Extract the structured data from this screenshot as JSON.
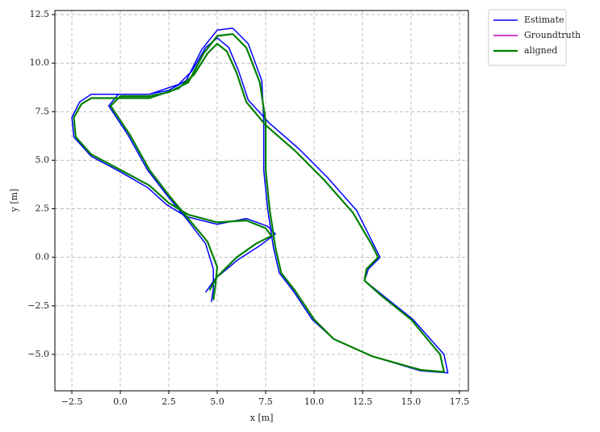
{
  "chart_data": {
    "type": "line",
    "xlabel": "x [m]",
    "ylabel": "y [m]",
    "xlim": [
      -3.375,
      17.96
    ],
    "ylim": [
      -6.875,
      12.71
    ],
    "xticks": [
      {
        "value": -2.5,
        "label": "−2.5"
      },
      {
        "value": 0,
        "label": "0.0"
      },
      2.5,
      {
        "value": 5,
        "label": "5.0"
      },
      7.5,
      {
        "value": 10,
        "label": "10.0"
      },
      12.5,
      {
        "value": 15,
        "label": "15.0"
      },
      17.5
    ],
    "yticks": [
      {
        "value": -5,
        "label": "−5.0"
      },
      {
        "value": -2.5,
        "label": "−2.5"
      },
      {
        "value": 0,
        "label": "0.0"
      },
      2.5,
      {
        "value": 5,
        "label": "5.0"
      },
      7.5,
      {
        "value": 10,
        "label": "10.0"
      },
      12.5
    ],
    "grid": true,
    "legend": "outside-upper-right",
    "series": [
      {
        "name": "Estimate",
        "color": "#0000ff",
        "width": 1.5,
        "x": [
          4.4,
          4.9,
          6.1,
          7.2,
          8.0,
          7.6,
          6.5,
          5.0,
          3.4,
          2.4,
          1.4,
          0,
          -1.5,
          -2.4,
          -2.5,
          -2.1,
          -1.5,
          0,
          1.5,
          3,
          3.7,
          4.4,
          5,
          5.6,
          6.1,
          6.6,
          7.7,
          9.2,
          10.7,
          12.2,
          13.1,
          13.4,
          12.8,
          12.6,
          13.6,
          15.1,
          16.7,
          16.9,
          15.5,
          13,
          11,
          9.9,
          8.9,
          8.2,
          7.9,
          7.6,
          7.4,
          7.4,
          7.3,
          6.6,
          5.8,
          5,
          4.2,
          3.4,
          2.5,
          1.5,
          -0.1,
          -0.6,
          0.4,
          1.4,
          2.4,
          3.4,
          4.4,
          4.8,
          4.8,
          4.7
        ],
        "values": [
          -1.8,
          -1.1,
          -0.1,
          0.6,
          1.2,
          1.6,
          2.0,
          1.7,
          2.1,
          2.7,
          3.6,
          4.4,
          5.2,
          6.2,
          7.2,
          8.0,
          8.4,
          8.4,
          8.4,
          8.9,
          9.6,
          10.8,
          11.3,
          10.8,
          9.6,
          8.1,
          6.9,
          5.6,
          4.1,
          2.4,
          0.6,
          0,
          -0.6,
          -1.2,
          -2,
          -3.2,
          -5,
          -5.95,
          -5.85,
          -5.1,
          -4.2,
          -3.2,
          -1.7,
          -0.8,
          0.5,
          2.5,
          4.5,
          7,
          9.1,
          11,
          11.8,
          11.7,
          10.7,
          9.1,
          8.6,
          8.4,
          8.4,
          7.8,
          6.3,
          4.5,
          3.2,
          2,
          0.7,
          -0.6,
          -1.6,
          -2.3
        ]
      },
      {
        "name": "Groundtruth",
        "color": "#bf00bf",
        "width": 1.5,
        "x": [
          4.6,
          5.0,
          6.0,
          7.0,
          7.8,
          7.5,
          6.5,
          5.0,
          3.5,
          2.5,
          1.5,
          0,
          -1.5,
          -2.3,
          -2.4,
          -2,
          -1.5,
          0,
          1.5,
          3,
          3.8,
          4.5,
          5,
          5.5,
          6,
          6.5,
          7.5,
          9,
          10.5,
          12,
          13,
          13.3,
          12.7,
          12.6,
          13.5,
          15,
          16.5,
          16.7,
          15.5,
          13,
          11,
          10,
          9,
          8.3,
          8,
          7.7,
          7.5,
          7.5,
          7.2,
          6.5,
          5.8,
          5,
          4.3,
          3.5,
          2.5,
          1.5,
          0,
          -0.5,
          0.5,
          1.5,
          2.5,
          3.5,
          4.5,
          5,
          4.9,
          4.8
        ],
        "values": [
          -1.7,
          -1,
          0,
          0.7,
          1.1,
          1.5,
          1.9,
          1.8,
          2.2,
          2.8,
          3.7,
          4.5,
          5.3,
          6.2,
          7.2,
          7.9,
          8.2,
          8.2,
          8.2,
          8.7,
          9.4,
          10.5,
          11,
          10.6,
          9.5,
          8,
          6.8,
          5.5,
          4,
          2.3,
          0.6,
          0,
          -0.6,
          -1.2,
          -2,
          -3.2,
          -5,
          -5.9,
          -5.8,
          -5.1,
          -4.2,
          -3.2,
          -1.7,
          -0.8,
          0.5,
          2.5,
          4.5,
          7,
          9,
          10.8,
          11.5,
          11.4,
          10.5,
          9,
          8.5,
          8.3,
          8.3,
          7.8,
          6.3,
          4.5,
          3.2,
          2,
          0.8,
          -0.5,
          -1.5,
          -2.2
        ]
      },
      {
        "name": "aligned",
        "color": "#008000",
        "width": 2.2,
        "x": [
          4.6,
          5.0,
          6.0,
          7.0,
          7.8,
          7.5,
          6.5,
          5.0,
          3.5,
          2.5,
          1.5,
          0,
          -1.5,
          -2.3,
          -2.4,
          -2,
          -1.5,
          0,
          1.5,
          3,
          3.8,
          4.5,
          5,
          5.5,
          6,
          6.5,
          7.5,
          9,
          10.5,
          12,
          13,
          13.3,
          12.7,
          12.6,
          13.5,
          15,
          16.5,
          16.7,
          15.5,
          13,
          11,
          10,
          9,
          8.3,
          8,
          7.7,
          7.5,
          7.5,
          7.2,
          6.5,
          5.8,
          5,
          4.3,
          3.5,
          2.5,
          1.5,
          0,
          -0.5,
          0.5,
          1.5,
          2.5,
          3.5,
          4.5,
          5,
          4.9,
          4.8
        ],
        "values": [
          -1.7,
          -1,
          0,
          0.7,
          1.1,
          1.5,
          1.9,
          1.8,
          2.2,
          2.8,
          3.7,
          4.5,
          5.3,
          6.2,
          7.2,
          7.9,
          8.2,
          8.2,
          8.2,
          8.7,
          9.4,
          10.5,
          11,
          10.6,
          9.5,
          8,
          6.8,
          5.5,
          4,
          2.3,
          0.6,
          0,
          -0.6,
          -1.2,
          -2,
          -3.2,
          -5,
          -5.9,
          -5.8,
          -5.1,
          -4.2,
          -3.2,
          -1.7,
          -0.8,
          0.5,
          2.5,
          4.5,
          7,
          9,
          10.8,
          11.5,
          11.4,
          10.5,
          9,
          8.5,
          8.3,
          8.3,
          7.8,
          6.3,
          4.5,
          3.2,
          2,
          0.8,
          -0.5,
          -1.5,
          -2.2
        ]
      }
    ]
  }
}
